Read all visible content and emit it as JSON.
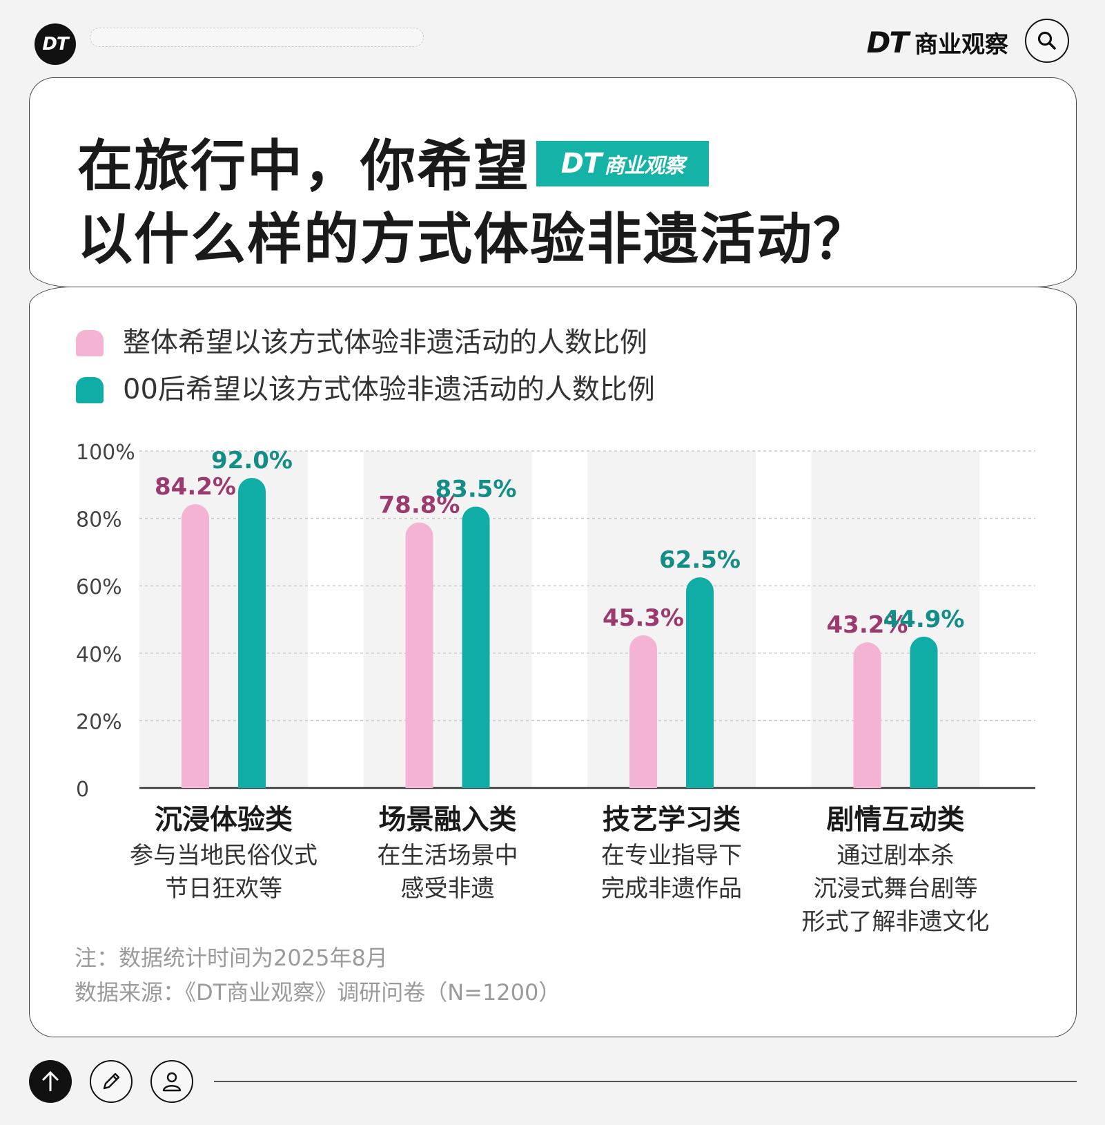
{
  "header": {
    "logo_text": "DT",
    "brand_dt": "DT",
    "brand_name": "商业观察"
  },
  "title": {
    "line1": "在旅行中，你希望",
    "line2": "以什么样的方式体验非遗活动？",
    "badge_dt": "DT",
    "badge_name": "商业观察"
  },
  "legend": [
    {
      "label": "整体希望以该方式体验非遗活动的人数比例",
      "color": "#f4b3d2"
    },
    {
      "label": "00后希望以该方式体验非遗活动的人数比例",
      "color": "#0fada5"
    }
  ],
  "chart_data": {
    "type": "bar",
    "categories": [
      "沉浸体验类",
      "场景融入类",
      "技艺学习类",
      "剧情互动类"
    ],
    "category_subtitles": [
      [
        "参与当地民俗仪式",
        "节日狂欢等"
      ],
      [
        "在生活场景中",
        "感受非遗"
      ],
      [
        "在专业指导下",
        "完成非遗作品"
      ],
      [
        "通过剧本杀",
        "沉浸式舞台剧等",
        "形式了解非遗文化"
      ]
    ],
    "series": [
      {
        "name": "整体希望以该方式体验非遗活动的人数比例",
        "values": [
          84.2,
          78.8,
          45.3,
          43.2
        ],
        "labels": [
          "84.2%",
          "78.8%",
          "45.3%",
          "43.2%"
        ],
        "color": "#f4b3d2",
        "label_color": "#9b3a6e"
      },
      {
        "name": "00后希望以该方式体验非遗活动的人数比例",
        "values": [
          92.0,
          83.5,
          62.5,
          44.9
        ],
        "labels": [
          "92.0%",
          "83.5%",
          "62.5%",
          "44.9%"
        ],
        "color": "#0fada5",
        "label_color": "#138e87"
      }
    ],
    "yticks": [
      "0",
      "20%",
      "40%",
      "60%",
      "80%",
      "100%"
    ],
    "ylim": [
      0,
      100
    ],
    "grid": true
  },
  "notes": {
    "line1": "注：数据统计时间为2025年8月",
    "line2": "数据来源：《DT商业观察》调研问卷（N=1200）"
  }
}
